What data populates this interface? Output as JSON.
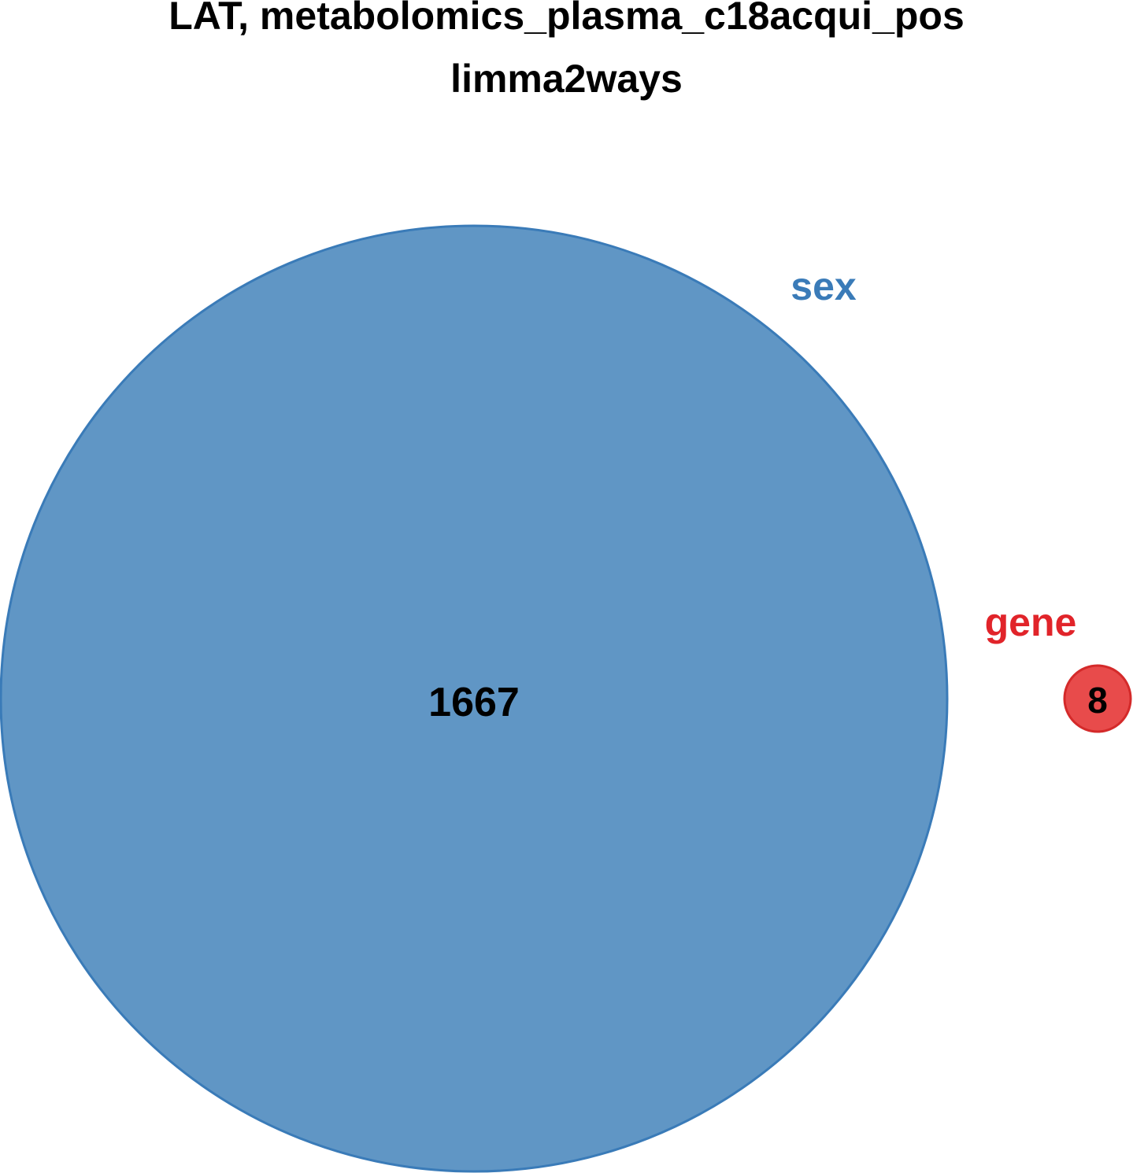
{
  "title_line1": "LAT, metabolomics_plasma_c18acqui_pos",
  "title_line2": "limma2ways",
  "sets": [
    {
      "name": "sex",
      "count": "1667",
      "fill": "#6096C5",
      "stroke": "#3A7BB8",
      "label_color": "#3A7BB8"
    },
    {
      "name": "gene",
      "count": "8",
      "fill": "#E84B4B",
      "stroke": "#D42A2A",
      "label_color": "#E1242A"
    }
  ]
}
